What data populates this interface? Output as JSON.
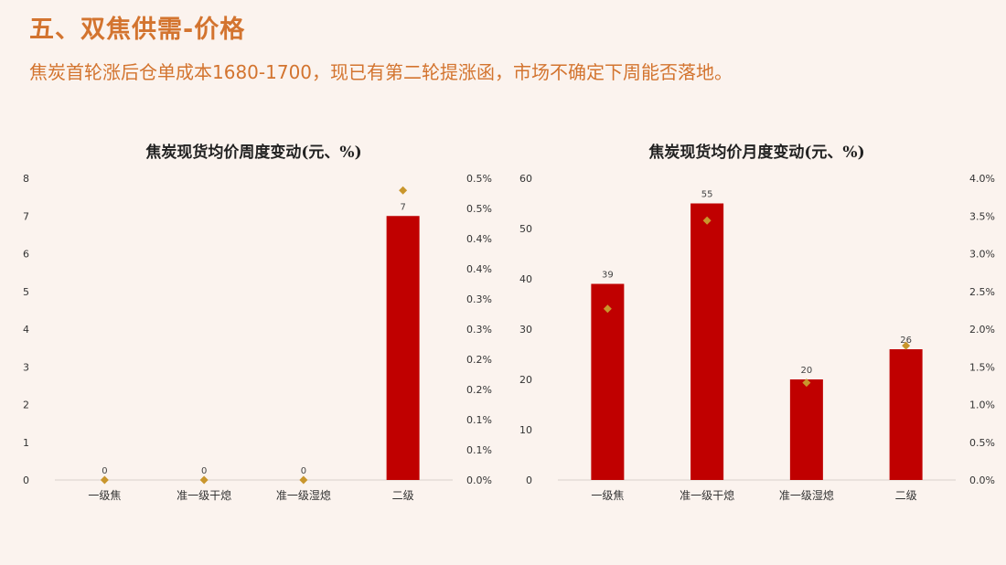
{
  "page": {
    "title": "五、双焦供需-价格",
    "subtitle": "焦炭首轮涨后仓单成本1680-1700，现已有第二轮提涨函，市场不确定下周能否落地。"
  },
  "colors": {
    "bar": "#c00000",
    "marker": "#c9962c",
    "accent": "#d3742f"
  },
  "chart_data": [
    {
      "type": "bar",
      "title": "焦炭现货均价周度变动(元、%)",
      "categories": [
        "一级焦",
        "准一级干熄",
        "准一级湿熄",
        "二级"
      ],
      "series": [
        {
          "values": [
            0,
            0,
            0,
            7
          ],
          "kind": "bar",
          "axis": "left"
        },
        {
          "values": [
            0.0,
            0.0,
            0.0,
            0.48
          ],
          "kind": "marker",
          "axis": "right"
        }
      ],
      "data_labels": [
        "0",
        "0",
        "0",
        "7"
      ],
      "ylim": [
        0,
        8
      ],
      "y_ticks": [
        "0",
        "1",
        "2",
        "3",
        "4",
        "5",
        "6",
        "7",
        "8"
      ],
      "y2lim": [
        0,
        0.5
      ],
      "y2_ticks": [
        "0.0%",
        "0.1%",
        "0.1%",
        "0.2%",
        "0.2%",
        "0.3%",
        "0.3%",
        "0.4%",
        "0.4%",
        "0.5%",
        "0.5%"
      ]
    },
    {
      "type": "bar",
      "title": "焦炭现货均价月度变动(元、%)",
      "categories": [
        "一级焦",
        "准一级干熄",
        "准一级湿熄",
        "二级"
      ],
      "series": [
        {
          "values": [
            39,
            55,
            20,
            26
          ],
          "kind": "bar",
          "axis": "left"
        },
        {
          "values": [
            2.27,
            3.44,
            1.29,
            1.78
          ],
          "kind": "marker",
          "axis": "right"
        }
      ],
      "data_labels": [
        "39",
        "55",
        "20",
        "26"
      ],
      "ylim": [
        0,
        60
      ],
      "y_ticks": [
        "0",
        "10",
        "20",
        "30",
        "40",
        "50",
        "60"
      ],
      "y2lim": [
        0,
        4.0
      ],
      "y2_ticks": [
        "0.0%",
        "0.5%",
        "1.0%",
        "1.5%",
        "2.0%",
        "2.5%",
        "3.0%",
        "3.5%",
        "4.0%"
      ]
    }
  ]
}
